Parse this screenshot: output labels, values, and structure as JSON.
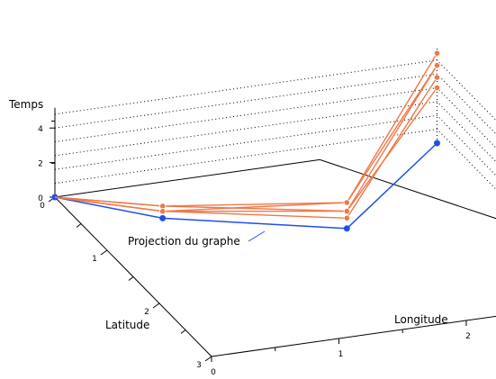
{
  "labels": {
    "z_axis": "Temps",
    "x_axis": "Latitude",
    "y_axis": "Longitude",
    "projection": "Projection du graphe"
  },
  "z_ticks": [
    "0",
    "2",
    "4"
  ],
  "x_ticks": [
    "0",
    "1",
    "2",
    "3"
  ],
  "y_ticks": [
    "0",
    "1",
    "2"
  ],
  "colors": {
    "graph": "#f07848",
    "projection": "#1f4fe8",
    "axes": "#000000",
    "grid": "#000000"
  },
  "projection_nodes": [
    {
      "lat": 0,
      "lon": 0
    },
    {
      "lat": 0.6,
      "lon": 0.6
    },
    {
      "lat": 1.2,
      "lon": 1.8
    },
    {
      "lat": 0,
      "lon": 3
    }
  ],
  "graph_paths": [
    [
      {
        "lat": 0.6,
        "lon": 0.6,
        "t": 0.7
      },
      {
        "lat": 1.2,
        "lon": 1.8,
        "t": 1.5
      },
      {
        "lat": 0,
        "lon": 3,
        "t": 5.2
      }
    ],
    [
      {
        "lat": 0.6,
        "lon": 0.6,
        "t": 0.4
      },
      {
        "lat": 1.2,
        "lon": 1.8,
        "t": 1.0
      },
      {
        "lat": 0,
        "lon": 3,
        "t": 4.5
      }
    ],
    [
      {
        "lat": 0.6,
        "lon": 0.6,
        "t": 0.4
      },
      {
        "lat": 1.2,
        "lon": 1.8,
        "t": 0.6
      },
      {
        "lat": 0,
        "lon": 3,
        "t": 3.8
      }
    ],
    [
      {
        "lat": 0.6,
        "lon": 0.6,
        "t": 0.7
      },
      {
        "lat": 1.2,
        "lon": 1.8,
        "t": 1.0
      },
      {
        "lat": 0,
        "lon": 3,
        "t": 3.2
      }
    ],
    [
      {
        "lat": 0.6,
        "lon": 0.6,
        "t": 0.4
      },
      {
        "lat": 1.2,
        "lon": 1.8,
        "t": 1.5
      },
      {
        "lat": 0,
        "lon": 3,
        "t": 4.5
      }
    ]
  ]
}
